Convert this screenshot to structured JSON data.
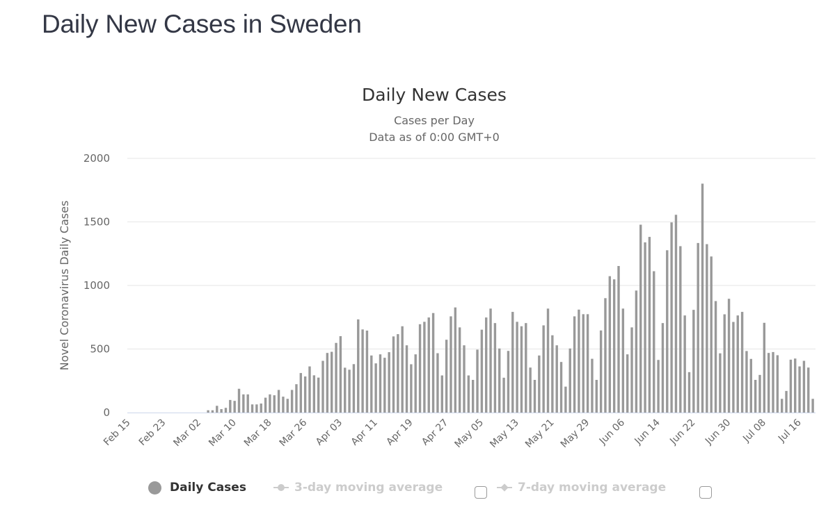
{
  "page": {
    "title": "Daily New Cases in Sweden"
  },
  "legend": {
    "items": [
      {
        "label": "Daily Cases",
        "active": true,
        "marker": "circle-icon"
      },
      {
        "label": "3-day moving average",
        "active": false,
        "marker": "line-circle-icon",
        "checkbox_checked": false
      },
      {
        "label": "7-day moving average",
        "active": false,
        "marker": "line-diamond-icon",
        "checkbox_checked": false
      }
    ]
  },
  "colors": {
    "bar": "#999999",
    "grid": "#e6e6e6",
    "axis_line": "#ccd6eb",
    "inactive_legend": "#cccccc"
  },
  "chart_data": {
    "type": "bar",
    "title": "Daily New Cases",
    "subtitle_lines": [
      "Cases per Day",
      "Data as of 0:00 GMT+0"
    ],
    "xlabel": "",
    "ylabel": "Novel Coronavirus Daily Cases",
    "ylim": [
      0,
      2000
    ],
    "y_ticks": [
      0,
      500,
      1000,
      1500,
      2000
    ],
    "x_start_date": "Feb 15",
    "x_end_date": "Jul 19",
    "x_tick_labels": [
      "Feb 15",
      "Feb 23",
      "Mar 02",
      "Mar 10",
      "Mar 18",
      "Mar 26",
      "Apr 03",
      "Apr 11",
      "Apr 19",
      "Apr 27",
      "May 05",
      "May 13",
      "May 21",
      "May 29",
      "Jun 06",
      "Jun 14",
      "Jun 22",
      "Jun 30",
      "Jul 08",
      "Jul 16"
    ],
    "x_tick_interval_days": 8,
    "grid": true,
    "legend_position": "bottom",
    "series": [
      {
        "name": "Daily Cases",
        "first_date": "Mar 04",
        "days_before_first_from_axis_start": 18,
        "values": [
          18,
          18,
          53,
          27,
          37,
          99,
          92,
          187,
          143,
          143,
          64,
          64,
          71,
          117,
          143,
          136,
          178,
          125,
          108,
          178,
          223,
          311,
          284,
          363,
          293,
          275,
          407,
          469,
          478,
          548,
          601,
          353,
          337,
          381,
          733,
          654,
          645,
          449,
          387,
          458,
          431,
          475,
          599,
          617,
          679,
          529,
          380,
          458,
          695,
          714,
          748,
          783,
          467,
          292,
          573,
          757,
          827,
          670,
          529,
          292,
          257,
          495,
          652,
          748,
          818,
          704,
          504,
          274,
          485,
          792,
          714,
          679,
          704,
          354,
          257,
          449,
          686,
          818,
          608,
          529,
          398,
          204,
          504,
          757,
          810,
          774,
          774,
          423,
          257,
          646,
          900,
          1073,
          1048,
          1153,
          818,
          458,
          670,
          960,
          1478,
          1339,
          1382,
          1112,
          414,
          704,
          1277,
          1496,
          1556,
          1309,
          764,
          318,
          808,
          1334,
          1801,
          1325,
          1228,
          877,
          466,
          773,
          895,
          713,
          764,
          792,
          484,
          422,
          257,
          296,
          706,
          469,
          476,
          451,
          108,
          170,
          416,
          425,
          363,
          407,
          354,
          108
        ]
      },
      {
        "name": "3-day moving average",
        "visible": false,
        "values": []
      },
      {
        "name": "7-day moving average",
        "visible": false,
        "values": []
      }
    ]
  }
}
